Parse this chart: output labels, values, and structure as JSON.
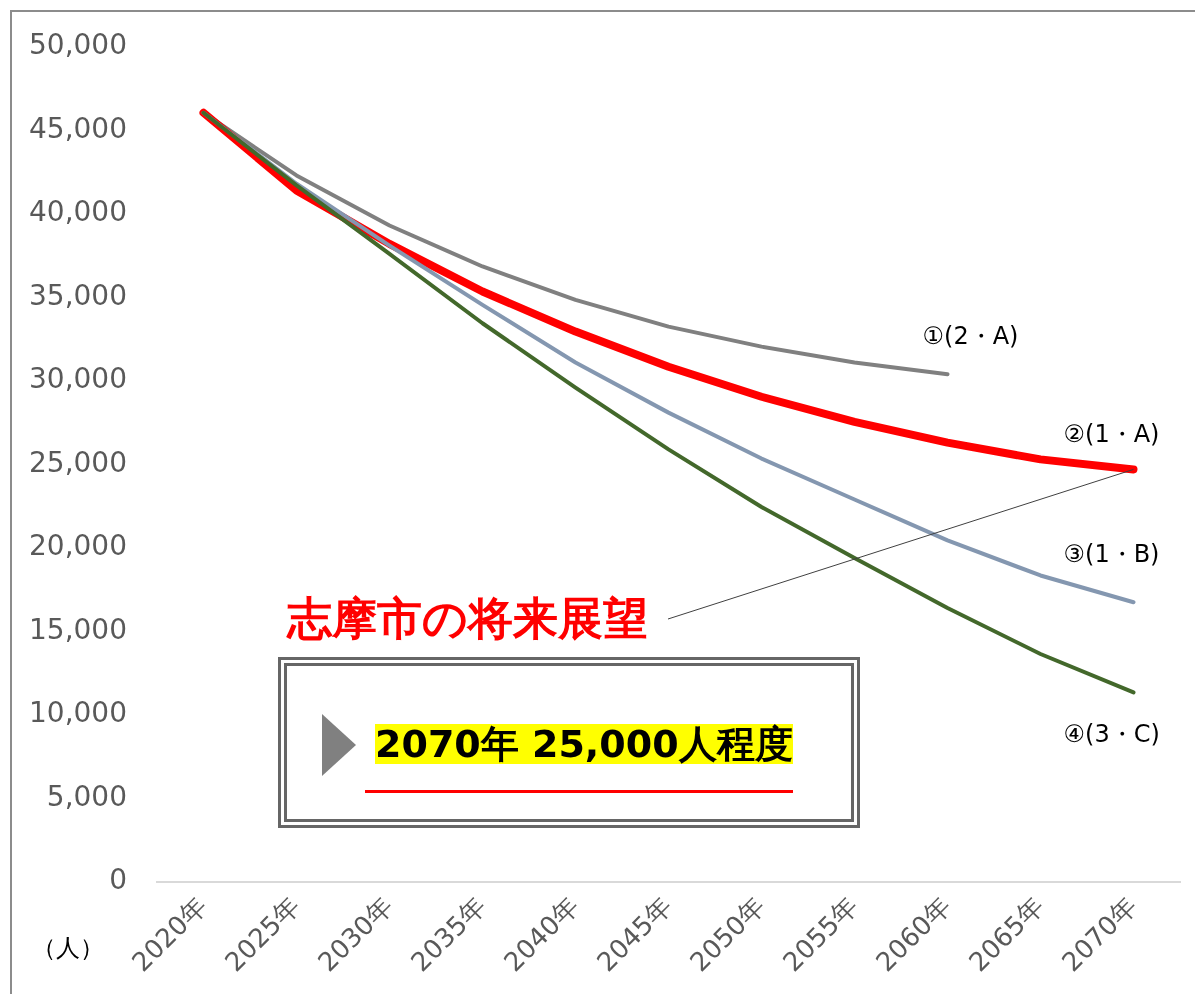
{
  "chart_data": {
    "type": "line",
    "categories": [
      "2020年",
      "2025年",
      "2030年",
      "2035年",
      "2040年",
      "2045年",
      "2050年",
      "2055年",
      "2060年",
      "2065年",
      "2070年"
    ],
    "series": [
      {
        "name": "①(2・A)",
        "color": "#808080",
        "values": [
          46050,
          42300,
          39300,
          36850,
          34850,
          33250,
          32050,
          31100,
          30400,
          null,
          null
        ]
      },
      {
        "name": "②(1・A)",
        "color": "#ff0000",
        "values": [
          46050,
          41400,
          38200,
          35350,
          32950,
          30850,
          29050,
          27550,
          26300,
          25300,
          24700
        ]
      },
      {
        "name": "③(1・B)",
        "color": "#8497b0",
        "values": [
          46050,
          41800,
          38100,
          34550,
          31100,
          28100,
          25350,
          22900,
          20450,
          18350,
          16750
        ]
      },
      {
        "name": "④(3・C)",
        "color": "#43682b",
        "values": [
          46050,
          41700,
          37600,
          33450,
          29600,
          25900,
          22450,
          19400,
          16400,
          13650,
          11350
        ]
      }
    ],
    "ylabel": "（人）",
    "ylim": [
      0,
      50000
    ],
    "yticks": [
      {
        "value": 0,
        "label": "0"
      },
      {
        "value": 5000,
        "label": "5,000"
      },
      {
        "value": 10000,
        "label": "10,000"
      },
      {
        "value": 15000,
        "label": "15,000"
      },
      {
        "value": 20000,
        "label": "20,000"
      },
      {
        "value": 25000,
        "label": "25,000"
      },
      {
        "value": 30000,
        "label": "30,000"
      },
      {
        "value": 35000,
        "label": "35,000"
      },
      {
        "value": 40000,
        "label": "40,000"
      },
      {
        "value": 45000,
        "label": "45,000"
      },
      {
        "value": 50000,
        "label": "50,000"
      }
    ],
    "annotations": [
      {
        "text": "志摩市の将来展望",
        "x": "2070年",
        "y": 24700
      },
      "2070年 25,000人程度"
    ]
  }
}
